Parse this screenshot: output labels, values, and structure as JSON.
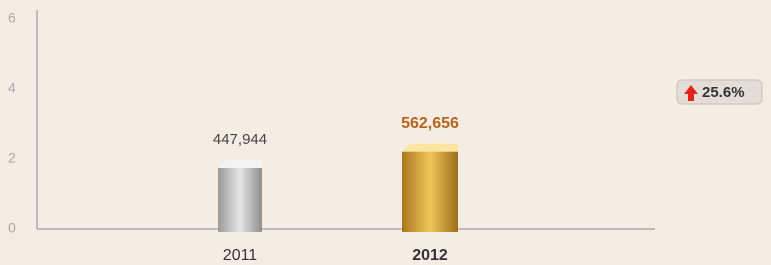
{
  "chart_data": {
    "type": "bar",
    "categories": [
      "2011",
      "2012"
    ],
    "values": [
      447944,
      562656
    ],
    "value_labels": [
      "447,944",
      "562,656"
    ],
    "colors": [
      "#b8b8b8",
      "#d2a33a"
    ],
    "label_colors": [
      "#444444",
      "#b5651d"
    ],
    "ylim": [
      0,
      6
    ],
    "yticks": [
      0,
      2,
      4,
      6
    ],
    "annotation": "25.6%"
  }
}
